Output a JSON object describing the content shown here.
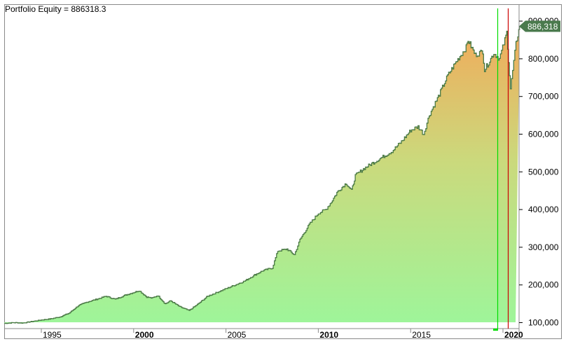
{
  "chart_data": {
    "type": "area",
    "title": "Portfolio Equity = 886318.3",
    "xlabel": "",
    "ylabel": "",
    "series": [
      {
        "name": "Portfolio Equity",
        "x": [
          1993.0,
          1993.5,
          1994.0,
          1994.5,
          1995.0,
          1995.5,
          1996.0,
          1996.5,
          1997.0,
          1997.5,
          1998.0,
          1998.5,
          1999.0,
          1999.5,
          2000.0,
          2000.3,
          2000.7,
          2001.0,
          2001.3,
          2001.7,
          2002.0,
          2002.5,
          2003.0,
          2003.5,
          2004.0,
          2004.5,
          2005.0,
          2005.5,
          2006.0,
          2006.5,
          2007.0,
          2007.5,
          2007.8,
          2008.3,
          2008.7,
          2009.0,
          2009.5,
          2010.0,
          2010.4,
          2010.7,
          2011.0,
          2011.5,
          2011.8,
          2012.0,
          2012.5,
          2013.0,
          2013.5,
          2014.0,
          2014.5,
          2015.0,
          2015.4,
          2015.7,
          2016.0,
          2016.5,
          2017.0,
          2017.5,
          2018.0,
          2018.1,
          2018.5,
          2018.9,
          2019.0,
          2019.5,
          2019.8,
          2020.1,
          2020.2,
          2020.4,
          2020.7,
          2020.9
        ],
        "values": [
          98000,
          100000,
          99000,
          103000,
          107000,
          110000,
          115000,
          125000,
          145000,
          155000,
          162000,
          170000,
          162000,
          172000,
          180000,
          185000,
          168000,
          165000,
          172000,
          150000,
          158000,
          142000,
          132000,
          150000,
          170000,
          180000,
          190000,
          200000,
          210000,
          225000,
          238000,
          245000,
          290000,
          295000,
          280000,
          320000,
          360000,
          390000,
          400000,
          420000,
          445000,
          470000,
          450000,
          490000,
          510000,
          525000,
          540000,
          555000,
          580000,
          610000,
          620000,
          600000,
          650000,
          700000,
          755000,
          795000,
          830000,
          850000,
          810000,
          820000,
          770000,
          815000,
          800000,
          850000,
          870000,
          720000,
          840000,
          886318
        ]
      }
    ],
    "x_ticks": [
      "1995",
      "2000",
      "2005",
      "2010",
      "2015",
      "2020"
    ],
    "x_ticks_bold": [
      "2000",
      "2010",
      "2020"
    ],
    "y_ticks": [
      "100,000",
      "200,000",
      "300,000",
      "400,000",
      "500,000",
      "600,000",
      "700,000",
      "800,000",
      "900,000"
    ],
    "ylim": [
      90000,
      920000
    ],
    "xlim": [
      1992.8,
      2021.0
    ],
    "last_value_label": "886,318",
    "markers": [
      {
        "type": "vertical-line",
        "color": "#00dd00",
        "x": 2019.0
      },
      {
        "type": "vertical-line",
        "color": "#cc0000",
        "x": 2019.6
      }
    ],
    "grid": false,
    "legend": "none",
    "colors": {
      "line": "#4a7a45",
      "fill_top": "#f2aa5a",
      "fill_bottom": "#9ef59a",
      "last_label_bg": "#4a7a4d"
    }
  }
}
